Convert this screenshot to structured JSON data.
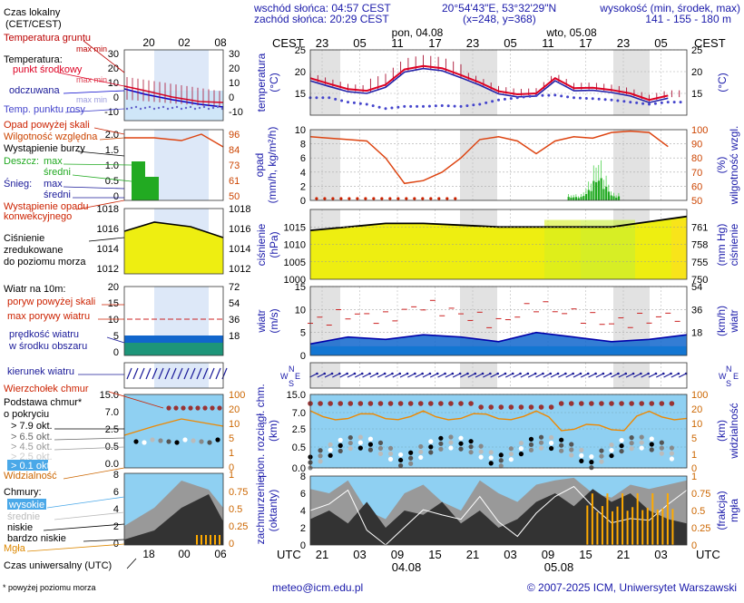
{
  "header": {
    "sunrise": "wschód słońca: 04:57 CEST",
    "sunset": "zachód słońca: 20:29 CEST",
    "coords": "20°54'43\"E, 53°32'29\"N",
    "grid": "(x=248, y=368)",
    "elev_title": "wysokość (min, środek, max)",
    "elev_values": "141 - 155 - 180 m"
  },
  "legend": {
    "time_local": "Czas lokalny",
    "time_local_sub": "(CET/CEST)",
    "soil": "Temperatura gruntu",
    "soil_sub": "max min",
    "temp_title": "Temperatura:",
    "temp_mid": "punkt środkowy",
    "temp_range": "max min",
    "feels": "odczuwana",
    "feels_range": "max min",
    "dew": "Temp. punktu rosy",
    "precip_above": "Opad powyżej skali",
    "humidity": "Wilgotność względna",
    "storm": "Wystąpienie burzy",
    "rain": "Deszcz:",
    "rain_max": "max",
    "rain_mean": "średni",
    "snow": "Śnieg:",
    "snow_max": "max",
    "snow_mean": "średni",
    "conv": "Wystąpienie opadu",
    "conv2": "konwekcyjnego",
    "pressure1": "Ciśnienie",
    "pressure2": "zredukowane",
    "pressure3": "do poziomu morza",
    "wind_title": "Wiatr na 10m:",
    "gust_above": "poryw powyżej skali",
    "gust_max": "max porywy wiatru",
    "wind_speed": "prędkość wiatru",
    "wind_area": "w środku obszaru",
    "wind_dir": "kierunek wiatru",
    "cloud_top": "Wierzchołek chmur",
    "cloud_base": "Podstawa chmur*",
    "cloud_base2": "o pokryciu",
    "okt79": "> 7.9 okt.",
    "okt65": "> 6.5 okt.",
    "okt45": "> 4.5 okt.",
    "okt25": "> 2.5 okt.",
    "okt01": "> 0.1 okt.",
    "visibility": "Widzialność",
    "clouds": "Chmury:",
    "high": "wysokie",
    "mid": "średnie",
    "low": "niskie",
    "vlow": "bardzo niskie",
    "fog": "Mgła",
    "utc": "Czas uniwersalny (UTC)",
    "footnote": "* powyżej poziomu morza",
    "mini_top_ticks": [
      "20",
      "02",
      "08"
    ],
    "mini_bottom_ticks": [
      "18",
      "00",
      "06"
    ]
  },
  "main": {
    "cest": "CEST",
    "utc": "UTC",
    "day1": "pon, 04.08",
    "day2": "wto, 05.08",
    "day1_bottom": "04.08",
    "day2_bottom": "05.08",
    "top_ticks": [
      "23",
      "05",
      "11",
      "17",
      "23",
      "05",
      "11",
      "17",
      "23",
      "05"
    ],
    "bottom_ticks": [
      "21",
      "03",
      "09",
      "15",
      "21",
      "03",
      "09",
      "15",
      "21",
      "03"
    ],
    "y_temp": "temperatura",
    "y_temp_u": "(°C)",
    "y_precip": "opad",
    "y_precip_u": "(mm/h, kg/m²/h)",
    "y_hum": "wilgotność wzgl.",
    "y_hum_u": "(%)",
    "y_press": "ciśnienie",
    "y_press_u": "(hPa)",
    "y_press_r": "(mm Hg)",
    "y_wind": "wiatr",
    "y_wind_u": "(m/s)",
    "y_wind_r": "(km/h)",
    "y_cb": "pion. rozciągł. chm.",
    "y_cb_u": "(km)",
    "y_vis": "widzialność",
    "y_vis_u": "(km)",
    "y_cc": "zachmurzenie",
    "y_cc_u": "(oktanty)",
    "y_fog": "mgła",
    "y_fog_u": "(frakcja)"
  },
  "footer": {
    "email": "meteo@icm.edu.pl",
    "copyright": "© 2007-2025 ICM, Uniwersytet Warszawski"
  },
  "colors": {
    "temp": "#dd0022",
    "dew": "#4444cc",
    "feels": "#2222aa",
    "humidity": "#dd4411",
    "rain": "#22aa22",
    "pressure_fill": "#eeee11",
    "wind_fill": "#1166cc",
    "gust": "#cc2222",
    "sky": "#8fd0f2",
    "night": "#e2e2e2"
  },
  "chart_data": [
    {
      "type": "line",
      "title": "temperatura",
      "ylabel": "(°C)",
      "ylim": [
        10,
        25
      ],
      "yticks": [
        "25",
        "20",
        "15"
      ],
      "x_hours_utc": [
        0,
        3,
        6,
        9,
        12,
        15,
        18,
        21,
        24,
        27,
        30,
        33,
        36,
        39,
        42,
        45,
        48,
        51,
        54,
        57
      ],
      "series": [
        {
          "name": "punkt środkowy",
          "values": [
            18.5,
            17.2,
            16.0,
            15.6,
            17.0,
            20.5,
            21.3,
            20.8,
            19.2,
            17.5,
            15.5,
            14.8,
            15.0,
            18.5,
            16.2,
            16.3,
            15.8,
            15.0,
            13.5,
            14.5
          ]
        },
        {
          "name": "Temp. punktu rosy",
          "values": [
            14.0,
            14.0,
            13.0,
            12.5,
            11.5,
            12.0,
            12.0,
            12.2,
            12.0,
            12.5,
            13.5,
            14.0,
            14.5,
            14.6,
            14.0,
            13.8,
            13.5,
            13.0,
            12.5,
            13.0
          ]
        }
      ]
    },
    {
      "type": "bar",
      "title": "opad / wilgotność",
      "ylabel": "(mm/h, kg/m²/h)",
      "ylim": [
        0,
        10
      ],
      "yticks": [
        "10",
        "8",
        "6",
        "4",
        "2",
        "0"
      ],
      "ylim_right": [
        50,
        100
      ],
      "yticks_right": [
        "100",
        "90",
        "80",
        "70",
        "60",
        "50"
      ],
      "series": [
        {
          "name": "Wilgotność względna",
          "x_hours_utc": [
            0,
            3,
            6,
            9,
            12,
            15,
            18,
            21,
            24,
            27,
            30,
            33,
            36,
            39,
            42,
            45,
            48,
            51,
            54,
            57
          ],
          "values": [
            95,
            94,
            93,
            92,
            80,
            62,
            64,
            70,
            80,
            93,
            95,
            92,
            83,
            92,
            95,
            94,
            98,
            99,
            98,
            88
          ]
        },
        {
          "name": "Deszcz średni",
          "x_hours_utc": [
            43,
            44,
            45,
            46,
            47,
            48
          ],
          "values": [
            0.5,
            1.2,
            2.8,
            3.5,
            2.0,
            0.6
          ]
        }
      ]
    },
    {
      "type": "area",
      "title": "ciśnienie",
      "ylabel": "(hPa)",
      "ylim": [
        1000,
        1020
      ],
      "yticks": [
        "1015",
        "1010",
        "1005",
        "1000"
      ],
      "yticks_right": [
        "761",
        "758",
        "755",
        "750"
      ],
      "x_hours_utc": [
        0,
        6,
        12,
        18,
        24,
        30,
        36,
        42,
        48,
        54,
        60
      ],
      "series": [
        {
          "name": "Ciśnienie",
          "values": [
            1014.0,
            1015.0,
            1016.0,
            1016.0,
            1015.5,
            1015.0,
            1015.0,
            1015.0,
            1015.0,
            1016.5,
            1018.0
          ]
        }
      ]
    },
    {
      "type": "area",
      "title": "wiatr",
      "ylabel": "(m/s)",
      "ylim": [
        0,
        15
      ],
      "yticks": [
        "15",
        "10",
        "5",
        "0"
      ],
      "yticks_right": [
        "54",
        "36",
        "18"
      ],
      "x_hours_utc": [
        0,
        6,
        12,
        18,
        24,
        30,
        36,
        42,
        48,
        54,
        60
      ],
      "series": [
        {
          "name": "prędkość wiatru",
          "values": [
            2.5,
            4.0,
            3.5,
            4.5,
            4.0,
            3.0,
            5.0,
            4.0,
            3.0,
            3.5,
            4.5
          ]
        },
        {
          "name": "max porywy wiatru",
          "values": [
            7,
            9,
            8,
            11,
            9,
            7,
            11,
            9,
            7,
            8,
            9
          ]
        }
      ]
    },
    {
      "type": "scatter",
      "title": "Podstawa chmur / widzialność",
      "ylabel": "(km)",
      "yticks": [
        "15.0",
        "7.0",
        "2.5",
        "0.5",
        "0.0"
      ],
      "yticks_right": [
        "100",
        "20",
        "10",
        "5",
        "1",
        "0"
      ]
    },
    {
      "type": "area",
      "title": "zachmurzenie / mgła",
      "ylabel": "(oktanty)",
      "ylim": [
        0,
        8
      ],
      "yticks": [
        "8",
        "6",
        "4",
        "2",
        "0"
      ],
      "ylim_right": [
        0,
        1
      ],
      "yticks_right": [
        "1",
        "0.75",
        "0.5",
        "0.25",
        "0"
      ]
    }
  ]
}
